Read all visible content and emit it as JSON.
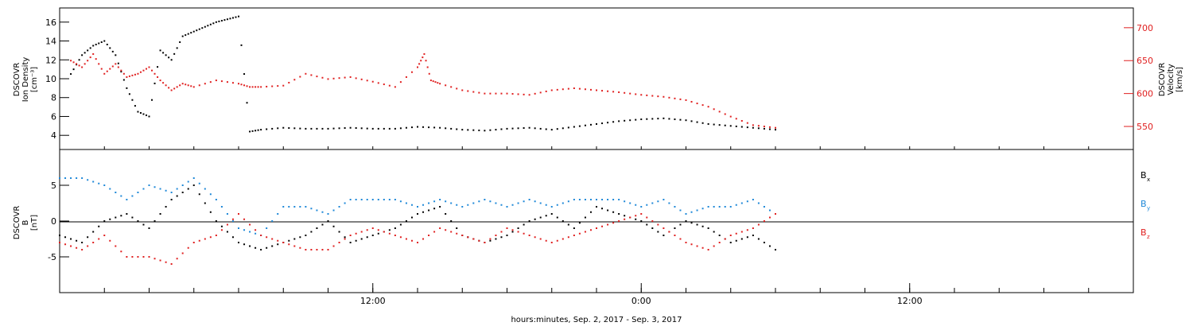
{
  "chart_data": [
    {
      "type": "scatter",
      "panel": "top",
      "ylabel_left": [
        "DSCOVR",
        "Ion Density",
        "[cm⁻³]"
      ],
      "ylabel_right": [
        "DSCOVR",
        "Velocity",
        "[km/s]"
      ],
      "ylim_left": [
        2.5,
        17.5
      ],
      "ylim_right": [
        515,
        730
      ],
      "yticks_left": [
        4,
        6,
        8,
        10,
        12,
        14,
        16
      ],
      "yticks_right": [
        550,
        600,
        650,
        700
      ],
      "series": [
        {
          "key": "density",
          "axis": "left",
          "color": "#000000",
          "points": [
            [
              0.5,
              10.5
            ],
            [
              1,
              12.5
            ],
            [
              1.5,
              13.5
            ],
            [
              2,
              14
            ],
            [
              2.5,
              12.5
            ],
            [
              3,
              9
            ],
            [
              3.5,
              6.5
            ],
            [
              4,
              6
            ],
            [
              4.5,
              13
            ],
            [
              5,
              12
            ],
            [
              5.5,
              14.5
            ],
            [
              6,
              15
            ],
            [
              6.5,
              15.5
            ],
            [
              7,
              16
            ],
            [
              7.5,
              16.3
            ],
            [
              8,
              16.6
            ],
            [
              8.5,
              4.4
            ],
            [
              9,
              4.6
            ],
            [
              10,
              4.8
            ],
            [
              11,
              4.7
            ],
            [
              12,
              4.7
            ],
            [
              13,
              4.8
            ],
            [
              14,
              4.7
            ],
            [
              15,
              4.7
            ],
            [
              16,
              4.9
            ],
            [
              17,
              4.8
            ],
            [
              18,
              4.6
            ],
            [
              19,
              4.5
            ],
            [
              20,
              4.7
            ],
            [
              21,
              4.8
            ],
            [
              22,
              4.6
            ],
            [
              23,
              4.9
            ],
            [
              24,
              5.2
            ],
            [
              25,
              5.5
            ],
            [
              26,
              5.7
            ],
            [
              27,
              5.8
            ],
            [
              28,
              5.6
            ],
            [
              29,
              5.2
            ],
            [
              30,
              5.0
            ],
            [
              31,
              4.8
            ],
            [
              32,
              4.6
            ]
          ]
        },
        {
          "key": "velocity",
          "axis": "right",
          "color": "#e02020",
          "points": [
            [
              0.5,
              650
            ],
            [
              1,
              640
            ],
            [
              1.5,
              660
            ],
            [
              2,
              630
            ],
            [
              2.5,
              645
            ],
            [
              3,
              625
            ],
            [
              3.5,
              630
            ],
            [
              4,
              640
            ],
            [
              4.5,
              620
            ],
            [
              5,
              605
            ],
            [
              5.5,
              615
            ],
            [
              6,
              610
            ],
            [
              7,
              620
            ],
            [
              8,
              615
            ],
            [
              8.5,
              610
            ],
            [
              9,
              610
            ],
            [
              10,
              612
            ],
            [
              11,
              630
            ],
            [
              12,
              622
            ],
            [
              13,
              625
            ],
            [
              14,
              618
            ],
            [
              15,
              610
            ],
            [
              16,
              640
            ],
            [
              16.3,
              660
            ],
            [
              16.6,
              620
            ],
            [
              17,
              615
            ],
            [
              18,
              605
            ],
            [
              19,
              600
            ],
            [
              20,
              600
            ],
            [
              21,
              598
            ],
            [
              22,
              605
            ],
            [
              23,
              608
            ],
            [
              24,
              605
            ],
            [
              25,
              602
            ],
            [
              26,
              598
            ],
            [
              27,
              595
            ],
            [
              28,
              590
            ],
            [
              29,
              580
            ],
            [
              30,
              565
            ],
            [
              31,
              552
            ],
            [
              32,
              548
            ]
          ]
        }
      ]
    },
    {
      "type": "scatter",
      "panel": "bottom",
      "ylabel_left": [
        "DSCOVR",
        "B",
        "[nT]"
      ],
      "ylim": [
        -10,
        10
      ],
      "yticks": [
        -5,
        0,
        5
      ],
      "legend": {
        "placement": "right",
        "entries": [
          {
            "label": "B",
            "sub": "x",
            "color": "#000000"
          },
          {
            "label": "B",
            "sub": "y",
            "color": "#1e88d8"
          },
          {
            "label": "B",
            "sub": "z",
            "color": "#e02020"
          }
        ]
      },
      "series": [
        {
          "key": "bx",
          "color": "#000000",
          "points": [
            [
              0,
              -2
            ],
            [
              1,
              -3
            ],
            [
              2,
              0
            ],
            [
              3,
              1
            ],
            [
              4,
              -1
            ],
            [
              5,
              3
            ],
            [
              6,
              5
            ],
            [
              7,
              0
            ],
            [
              8,
              -3
            ],
            [
              9,
              -4
            ],
            [
              10,
              -3
            ],
            [
              11,
              -2
            ],
            [
              12,
              0
            ],
            [
              13,
              -3
            ],
            [
              14,
              -2
            ],
            [
              15,
              -1
            ],
            [
              16,
              1
            ],
            [
              17,
              2
            ],
            [
              18,
              -2
            ],
            [
              19,
              -3
            ],
            [
              20,
              -2
            ],
            [
              21,
              0
            ],
            [
              22,
              1
            ],
            [
              23,
              -1
            ],
            [
              24,
              2
            ],
            [
              25,
              1
            ],
            [
              26,
              0
            ],
            [
              27,
              -2
            ],
            [
              28,
              0
            ],
            [
              29,
              -1
            ],
            [
              30,
              -3
            ],
            [
              31,
              -2
            ],
            [
              32,
              -4
            ]
          ]
        },
        {
          "key": "by",
          "color": "#1e88d8",
          "points": [
            [
              0,
              6
            ],
            [
              1,
              6
            ],
            [
              2,
              5
            ],
            [
              3,
              3
            ],
            [
              4,
              5
            ],
            [
              5,
              4
            ],
            [
              6,
              6
            ],
            [
              7,
              3
            ],
            [
              8,
              -1
            ],
            [
              9,
              -2
            ],
            [
              10,
              2
            ],
            [
              11,
              2
            ],
            [
              12,
              1
            ],
            [
              13,
              3
            ],
            [
              14,
              3
            ],
            [
              15,
              3
            ],
            [
              16,
              2
            ],
            [
              17,
              3
            ],
            [
              18,
              2
            ],
            [
              19,
              3
            ],
            [
              20,
              2
            ],
            [
              21,
              3
            ],
            [
              22,
              2
            ],
            [
              23,
              3
            ],
            [
              24,
              3
            ],
            [
              25,
              3
            ],
            [
              26,
              2
            ],
            [
              27,
              3
            ],
            [
              28,
              1
            ],
            [
              29,
              2
            ],
            [
              30,
              2
            ],
            [
              31,
              3
            ],
            [
              32,
              1
            ]
          ]
        },
        {
          "key": "bz",
          "color": "#e02020",
          "points": [
            [
              0,
              -3
            ],
            [
              1,
              -4
            ],
            [
              2,
              -2
            ],
            [
              3,
              -5
            ],
            [
              4,
              -5
            ],
            [
              5,
              -6
            ],
            [
              6,
              -3
            ],
            [
              7,
              -2
            ],
            [
              8,
              1
            ],
            [
              9,
              -2
            ],
            [
              10,
              -3
            ],
            [
              11,
              -4
            ],
            [
              12,
              -4
            ],
            [
              13,
              -2
            ],
            [
              14,
              -1
            ],
            [
              15,
              -2
            ],
            [
              16,
              -3
            ],
            [
              17,
              -1
            ],
            [
              18,
              -2
            ],
            [
              19,
              -3
            ],
            [
              20,
              -1
            ],
            [
              21,
              -2
            ],
            [
              22,
              -3
            ],
            [
              23,
              -2
            ],
            [
              24,
              -1
            ],
            [
              25,
              0
            ],
            [
              26,
              1
            ],
            [
              27,
              -1
            ],
            [
              28,
              -3
            ],
            [
              29,
              -4
            ],
            [
              30,
              -2
            ],
            [
              31,
              -1
            ],
            [
              32,
              1
            ]
          ]
        }
      ]
    }
  ],
  "x_axis": {
    "range_hours": [
      0,
      48
    ],
    "tick_labels": [
      {
        "hour": 14,
        "label": "12:00"
      },
      {
        "hour": 26,
        "label": "0:00"
      },
      {
        "hour": 38,
        "label": "12:00"
      }
    ],
    "minor_every_hours": 2,
    "title": "hours:minutes, Sep.  2, 2017 - Sep.  3, 2017"
  }
}
